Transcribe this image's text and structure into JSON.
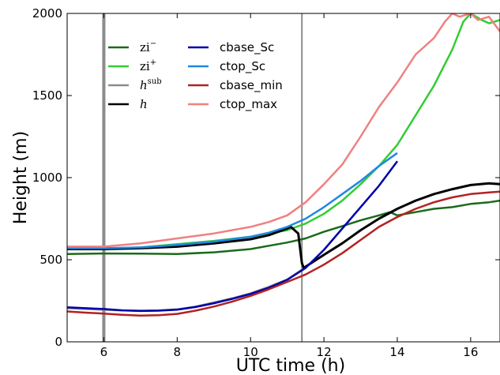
{
  "chart_data": {
    "type": "line",
    "title": "",
    "xlabel": "UTC time (h)",
    "ylabel": "Height (m)",
    "xlim": [
      5,
      16.8
    ],
    "ylim": [
      0,
      2000
    ],
    "xticks": [
      6,
      8,
      10,
      12,
      14,
      16
    ],
    "yticks": [
      0,
      500,
      1000,
      1500,
      2000
    ],
    "grid": false,
    "legend_position": "top-left",
    "vertical_lines": [
      {
        "x": 6.0,
        "color": "#8c8c8c",
        "style": "thick"
      },
      {
        "x": 11.4,
        "color": "#8c8c8c",
        "style": "thin"
      }
    ],
    "series": [
      {
        "name": "zi",
        "sup": "−",
        "math": true,
        "color": "#1a6b1a",
        "x": [
          5.0,
          6.0,
          7.0,
          8.0,
          9.0,
          10.0,
          10.5,
          11.0,
          11.5,
          12.0,
          12.5,
          13.0,
          13.5,
          13.8,
          14.0,
          14.5,
          15.0,
          15.5,
          16.0,
          16.5,
          16.8
        ],
        "y": [
          535,
          538,
          537,
          535,
          545,
          565,
          585,
          605,
          630,
          670,
          705,
          740,
          770,
          790,
          770,
          790,
          810,
          820,
          840,
          850,
          860
        ]
      },
      {
        "name": "zi",
        "sup": "+",
        "math": true,
        "color": "#33cc33",
        "x": [
          5.0,
          6.0,
          7.0,
          8.0,
          9.0,
          10.0,
          10.5,
          11.0,
          11.5,
          12.0,
          12.5,
          13.0,
          13.5,
          14.0,
          14.5,
          15.0,
          15.5,
          15.8,
          16.0,
          16.3,
          16.5,
          16.8
        ],
        "y": [
          565,
          565,
          575,
          595,
          615,
          640,
          660,
          680,
          720,
          780,
          860,
          960,
          1070,
          1200,
          1380,
          1560,
          1780,
          1950,
          2000,
          1960,
          1940,
          1960
        ]
      },
      {
        "name": "h",
        "sup": "sub",
        "math": true,
        "color": "#8c8c8c",
        "x": [
          5.0,
          5.5,
          6.0,
          6.5,
          7.0,
          7.5,
          8.0,
          8.5,
          9.0,
          9.5,
          10.0,
          10.5,
          11.0,
          11.4
        ],
        "y": [
          205,
          200,
          195,
          192,
          190,
          192,
          198,
          215,
          240,
          265,
          295,
          335,
          380,
          440
        ]
      },
      {
        "name": "h",
        "sup": "",
        "math": true,
        "color": "#000000",
        "x": [
          5.0,
          6.0,
          7.0,
          8.0,
          9.0,
          10.0,
          10.5,
          11.0,
          11.1,
          11.2,
          11.3,
          11.4,
          11.45,
          12.0,
          12.5,
          13.0,
          13.5,
          14.0,
          14.5,
          15.0,
          15.5,
          16.0,
          16.5,
          16.8
        ],
        "y": [
          565,
          565,
          570,
          580,
          600,
          625,
          650,
          690,
          700,
          680,
          660,
          480,
          450,
          530,
          600,
          680,
          750,
          810,
          860,
          900,
          930,
          955,
          965,
          960
        ]
      },
      {
        "name": "cbase_Sc",
        "sup": "",
        "math": false,
        "color": "#0000aa",
        "x": [
          5.0,
          5.5,
          6.0,
          6.5,
          7.0,
          7.5,
          8.0,
          8.5,
          9.0,
          9.5,
          10.0,
          10.5,
          11.0,
          11.5,
          12.0,
          12.5,
          13.0,
          13.5,
          14.0
        ],
        "y": [
          210,
          205,
          200,
          192,
          188,
          190,
          196,
          212,
          235,
          262,
          292,
          330,
          378,
          450,
          560,
          690,
          820,
          950,
          1100
        ]
      },
      {
        "name": "ctop_Sc",
        "sup": "",
        "math": false,
        "color": "#1e88e5",
        "x": [
          5.0,
          6.0,
          7.0,
          8.0,
          9.0,
          10.0,
          10.5,
          11.0,
          11.5,
          12.0,
          12.5,
          13.0,
          13.5,
          14.0
        ],
        "y": [
          570,
          570,
          575,
          590,
          610,
          640,
          665,
          700,
          750,
          820,
          900,
          980,
          1070,
          1150
        ]
      },
      {
        "name": "cbase_min",
        "sup": "",
        "math": false,
        "color": "#b22222",
        "x": [
          5.0,
          5.5,
          6.0,
          6.5,
          7.0,
          7.5,
          8.0,
          8.5,
          9.0,
          9.5,
          10.0,
          10.5,
          11.0,
          11.5,
          12.0,
          12.5,
          13.0,
          13.5,
          14.0,
          14.5,
          15.0,
          15.5,
          16.0,
          16.5,
          16.8
        ],
        "y": [
          185,
          178,
          172,
          165,
          160,
          162,
          170,
          190,
          215,
          245,
          280,
          320,
          365,
          410,
          470,
          540,
          620,
          700,
          760,
          810,
          850,
          880,
          900,
          910,
          915
        ]
      },
      {
        "name": "ctop_max",
        "sup": "",
        "math": false,
        "color": "#f08080",
        "x": [
          5.0,
          6.0,
          7.0,
          8.0,
          9.0,
          10.0,
          10.5,
          11.0,
          11.5,
          12.0,
          12.5,
          13.0,
          13.5,
          14.0,
          14.5,
          15.0,
          15.3,
          15.5,
          15.7,
          16.0,
          16.2,
          16.5,
          16.8
        ],
        "y": [
          580,
          580,
          600,
          630,
          660,
          700,
          730,
          770,
          850,
          960,
          1080,
          1250,
          1430,
          1580,
          1750,
          1850,
          1950,
          2000,
          1980,
          2000,
          1960,
          1980,
          1890
        ]
      }
    ]
  }
}
